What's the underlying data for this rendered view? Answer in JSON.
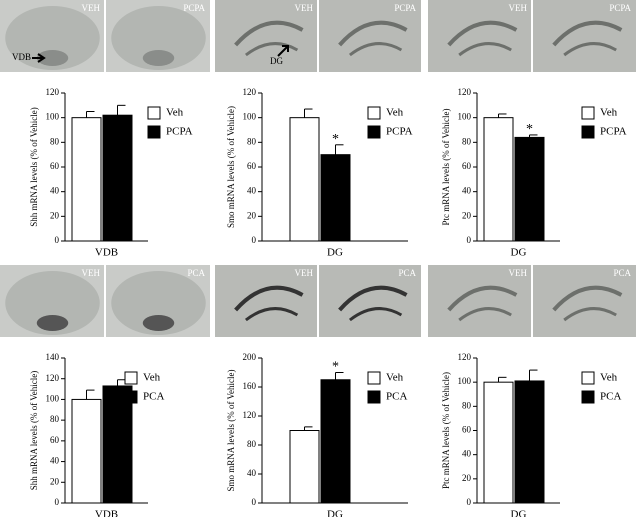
{
  "images": [
    {
      "left": "VEH",
      "right": "PCPA",
      "marker": "VDB"
    },
    {
      "left": "VEH",
      "right": "PCPA",
      "marker": "DG"
    },
    {
      "left": "VEH",
      "right": "PCPA"
    },
    {
      "left": "VEH",
      "right": "PCA"
    },
    {
      "left": "VEH",
      "right": "PCA"
    },
    {
      "left": "VEH",
      "right": "PCA"
    }
  ],
  "chart_data": [
    {
      "type": "bar",
      "ylabel": "Shh mRNA levels (% of Vehicle)",
      "categories": [
        "VDB"
      ],
      "ylim": [
        0,
        120
      ],
      "yticks": [
        0,
        20,
        40,
        60,
        80,
        100,
        120
      ],
      "series": [
        {
          "name": "Veh",
          "color": "#ffffff",
          "values": [
            100
          ],
          "errors": [
            5
          ]
        },
        {
          "name": "PCPA",
          "color": "#000000",
          "values": [
            102
          ],
          "errors": [
            8
          ]
        }
      ]
    },
    {
      "type": "bar",
      "ylabel": "Smo mRNA levels (% of Vehicle)",
      "categories": [
        "DG"
      ],
      "ylim": [
        0,
        120
      ],
      "yticks": [
        0,
        20,
        40,
        60,
        80,
        100,
        120
      ],
      "series": [
        {
          "name": "Veh",
          "color": "#ffffff",
          "values": [
            100
          ],
          "errors": [
            7
          ]
        },
        {
          "name": "PCPA",
          "color": "#000000",
          "values": [
            70
          ],
          "errors": [
            8
          ],
          "annotation": "*"
        }
      ]
    },
    {
      "type": "bar",
      "ylabel": "Ptc mRNA levels (% of Vehicle)",
      "categories": [
        "DG"
      ],
      "ylim": [
        0,
        120
      ],
      "yticks": [
        0,
        20,
        40,
        60,
        80,
        100,
        120
      ],
      "series": [
        {
          "name": "Veh",
          "color": "#ffffff",
          "values": [
            100
          ],
          "errors": [
            3
          ]
        },
        {
          "name": "PCPA",
          "color": "#000000",
          "values": [
            84
          ],
          "errors": [
            2
          ],
          "annotation": "*"
        }
      ]
    },
    {
      "type": "bar",
      "ylabel": "Shh mRNA levels (% of Vehicle)",
      "categories": [
        "VDB"
      ],
      "ylim": [
        0,
        140
      ],
      "yticks": [
        0,
        20,
        40,
        60,
        80,
        100,
        120,
        140
      ],
      "series": [
        {
          "name": "Veh",
          "color": "#ffffff",
          "values": [
            100
          ],
          "errors": [
            9
          ]
        },
        {
          "name": "PCA",
          "color": "#000000",
          "values": [
            113
          ],
          "errors": [
            6
          ]
        }
      ]
    },
    {
      "type": "bar",
      "ylabel": "Smo mRNA levels (% of Vehicle)",
      "categories": [
        "DG"
      ],
      "ylim": [
        0,
        200
      ],
      "yticks": [
        0,
        40,
        80,
        120,
        160,
        200
      ],
      "series": [
        {
          "name": "Veh",
          "color": "#ffffff",
          "values": [
            100
          ],
          "errors": [
            5
          ]
        },
        {
          "name": "PCA",
          "color": "#000000",
          "values": [
            170
          ],
          "errors": [
            10
          ],
          "annotation": "*"
        }
      ]
    },
    {
      "type": "bar",
      "ylabel": "Ptc mRNA levels (% of Vehicle)",
      "categories": [
        "DG"
      ],
      "ylim": [
        0,
        120
      ],
      "yticks": [
        0,
        20,
        40,
        60,
        80,
        100,
        120
      ],
      "series": [
        {
          "name": "Veh",
          "color": "#ffffff",
          "values": [
            100
          ],
          "errors": [
            4
          ]
        },
        {
          "name": "PCA",
          "color": "#000000",
          "values": [
            101
          ],
          "errors": [
            9
          ]
        }
      ]
    }
  ]
}
